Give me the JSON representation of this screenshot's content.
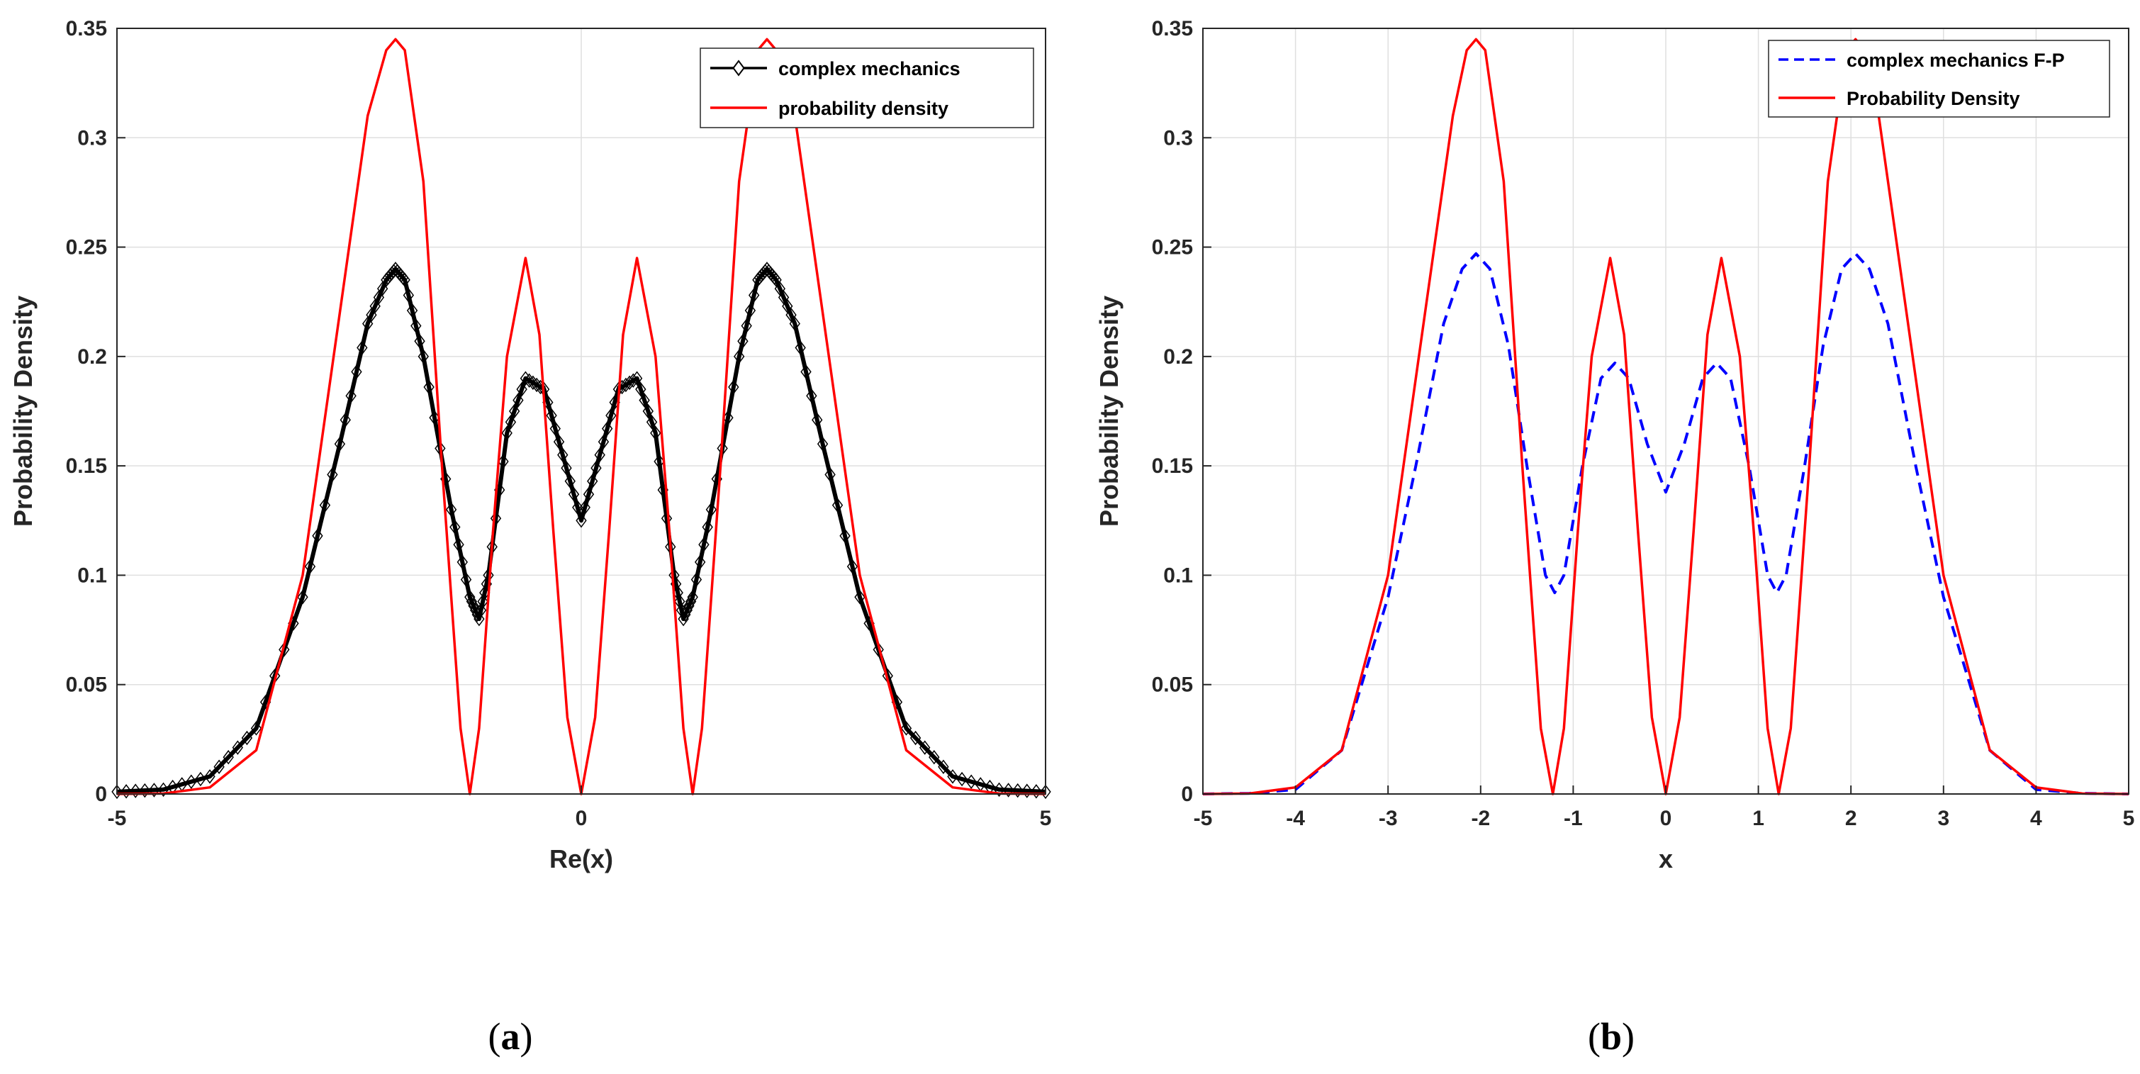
{
  "figure": {
    "panel_labels": [
      "a",
      "b"
    ]
  },
  "chart_data": [
    {
      "type": "line",
      "panel": "a",
      "xlabel": "Re(x)",
      "ylabel": "Probability Density",
      "xlim": [
        -5,
        5
      ],
      "ylim": [
        0,
        0.35
      ],
      "xticks": [
        -5,
        0,
        5
      ],
      "yticks": [
        0,
        0.05,
        0.1,
        0.15,
        0.2,
        0.25,
        0.3,
        0.35
      ],
      "ytick_labels": [
        "0",
        "0.05",
        "0.1",
        "0.15",
        "0.2",
        "0.25",
        "0.3",
        "0.35"
      ],
      "grid": true,
      "legend_position": "top-right",
      "series": [
        {
          "name": "complex mechanics",
          "color": "#000000",
          "style": "solid-with-diamond-markers",
          "x": [
            -5,
            -4.5,
            -4,
            -3.5,
            -3,
            -2.6,
            -2.3,
            -2.1,
            -2.0,
            -1.9,
            -1.7,
            -1.4,
            -1.2,
            -1.1,
            -1.0,
            -0.8,
            -0.6,
            -0.4,
            -0.2,
            0,
            0.2,
            0.4,
            0.6,
            0.8,
            1.0,
            1.1,
            1.2,
            1.4,
            1.7,
            1.9,
            2.0,
            2.1,
            2.3,
            2.6,
            3,
            3.5,
            4,
            4.5,
            5
          ],
          "y": [
            0.001,
            0.002,
            0.008,
            0.03,
            0.09,
            0.16,
            0.215,
            0.235,
            0.24,
            0.235,
            0.2,
            0.13,
            0.09,
            0.08,
            0.1,
            0.165,
            0.19,
            0.185,
            0.155,
            0.125,
            0.155,
            0.185,
            0.19,
            0.165,
            0.1,
            0.08,
            0.09,
            0.13,
            0.2,
            0.235,
            0.24,
            0.235,
            0.215,
            0.16,
            0.09,
            0.03,
            0.008,
            0.002,
            0.001
          ]
        },
        {
          "name": "probability density",
          "color": "#ff0000",
          "style": "solid",
          "x": [
            -5,
            -4.5,
            -4,
            -3.5,
            -3.0,
            -2.6,
            -2.3,
            -2.1,
            -2.0,
            -1.9,
            -1.7,
            -1.5,
            -1.3,
            -1.2,
            -1.1,
            -0.95,
            -0.8,
            -0.6,
            -0.45,
            -0.3,
            -0.15,
            0,
            0.15,
            0.3,
            0.45,
            0.6,
            0.8,
            0.95,
            1.1,
            1.2,
            1.3,
            1.5,
            1.7,
            1.9,
            2.0,
            2.1,
            2.3,
            2.6,
            3.0,
            3.5,
            4,
            4.5,
            5
          ],
          "y": [
            0,
            0.0002,
            0.003,
            0.02,
            0.1,
            0.22,
            0.31,
            0.34,
            0.345,
            0.34,
            0.28,
            0.15,
            0.03,
            0.0,
            0.03,
            0.12,
            0.2,
            0.245,
            0.21,
            0.12,
            0.035,
            0.0,
            0.035,
            0.12,
            0.21,
            0.245,
            0.2,
            0.12,
            0.03,
            0.0,
            0.03,
            0.15,
            0.28,
            0.34,
            0.345,
            0.34,
            0.31,
            0.22,
            0.1,
            0.02,
            0.003,
            0.0002,
            0
          ]
        }
      ]
    },
    {
      "type": "line",
      "panel": "b",
      "xlabel": "x",
      "ylabel": "Probability Density",
      "xlim": [
        -5,
        5
      ],
      "ylim": [
        0,
        0.35
      ],
      "xticks": [
        -5,
        -4,
        -3,
        -2,
        -1,
        0,
        1,
        2,
        3,
        4,
        5
      ],
      "yticks": [
        0,
        0.05,
        0.1,
        0.15,
        0.2,
        0.25,
        0.3,
        0.35
      ],
      "ytick_labels": [
        "0",
        "0.05",
        "0.1",
        "0.15",
        "0.2",
        "0.25",
        "0.3",
        "0.35"
      ],
      "grid": true,
      "legend_position": "top-right",
      "series": [
        {
          "name": "complex mechanics F-P",
          "color": "#0000ff",
          "style": "dashed",
          "x": [
            -5,
            -4.5,
            -4,
            -3.5,
            -3,
            -2.7,
            -2.4,
            -2.2,
            -2.05,
            -1.9,
            -1.7,
            -1.5,
            -1.3,
            -1.2,
            -1.1,
            -0.9,
            -0.7,
            -0.55,
            -0.4,
            -0.2,
            0,
            0.2,
            0.4,
            0.55,
            0.7,
            0.9,
            1.1,
            1.2,
            1.3,
            1.5,
            1.7,
            1.9,
            2.05,
            2.2,
            2.4,
            2.7,
            3,
            3.5,
            4,
            4.5,
            5
          ],
          "y": [
            0,
            0.0003,
            0.002,
            0.02,
            0.09,
            0.15,
            0.215,
            0.24,
            0.247,
            0.24,
            0.205,
            0.15,
            0.1,
            0.092,
            0.1,
            0.15,
            0.19,
            0.197,
            0.19,
            0.16,
            0.138,
            0.16,
            0.19,
            0.197,
            0.19,
            0.15,
            0.1,
            0.092,
            0.1,
            0.15,
            0.205,
            0.24,
            0.247,
            0.24,
            0.215,
            0.15,
            0.09,
            0.02,
            0.002,
            0.0003,
            0
          ]
        },
        {
          "name": "Probability Density",
          "color": "#ff0000",
          "style": "solid",
          "x": [
            -5,
            -4.5,
            -4,
            -3.5,
            -3.0,
            -2.6,
            -2.3,
            -2.15,
            -2.05,
            -1.95,
            -1.75,
            -1.55,
            -1.35,
            -1.22,
            -1.1,
            -0.95,
            -0.8,
            -0.6,
            -0.45,
            -0.3,
            -0.15,
            0,
            0.15,
            0.3,
            0.45,
            0.6,
            0.8,
            0.95,
            1.1,
            1.22,
            1.35,
            1.55,
            1.75,
            1.95,
            2.05,
            2.15,
            2.3,
            2.6,
            3.0,
            3.5,
            4,
            4.5,
            5
          ],
          "y": [
            0,
            0.0002,
            0.003,
            0.02,
            0.1,
            0.22,
            0.31,
            0.34,
            0.345,
            0.34,
            0.28,
            0.15,
            0.03,
            0.0,
            0.03,
            0.12,
            0.2,
            0.245,
            0.21,
            0.12,
            0.035,
            0.0,
            0.035,
            0.12,
            0.21,
            0.245,
            0.2,
            0.12,
            0.03,
            0.0,
            0.03,
            0.15,
            0.28,
            0.34,
            0.345,
            0.34,
            0.31,
            0.22,
            0.1,
            0.02,
            0.003,
            0.0002,
            0
          ]
        }
      ]
    }
  ]
}
